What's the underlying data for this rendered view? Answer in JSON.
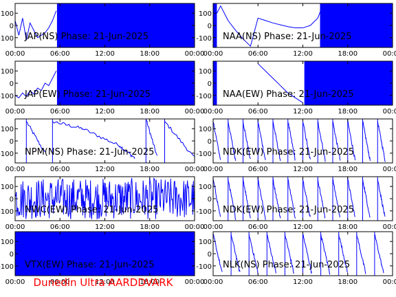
{
  "footer": "Dunedin Ultra AARDDVARK",
  "colors": {
    "trace": "#0000ff",
    "footer": "#ff0000",
    "axes": "#000000",
    "background": "#ffffff"
  },
  "chart_data": [
    {
      "type": "line",
      "title": "JAP(NS) Phase: 21-Jun-2025",
      "xlim": [
        0,
        24
      ],
      "ylim": [
        -180,
        180
      ],
      "x_tick_labels": [
        "00:00",
        "06:00",
        "12:00",
        "18:00",
        "00:00"
      ],
      "y_tick_labels": [
        "100",
        "0",
        "-100"
      ],
      "pattern": "mixed",
      "x": [
        0.0,
        0.5,
        1.0,
        1.5,
        2.0,
        2.5,
        3.0,
        3.5,
        4.0,
        4.5,
        5.0,
        5.5
      ],
      "y": [
        40,
        -80,
        60,
        -120,
        20,
        -40,
        -100,
        -80,
        -60,
        -20,
        40,
        120
      ]
    },
    {
      "type": "line",
      "title": "NAA(NS) Phase: 21-Jun-2025",
      "xlim": [
        0,
        24
      ],
      "ylim": [
        -180,
        180
      ],
      "x_tick_labels": [
        "00:00",
        "06:00",
        "12:00",
        "18:00",
        "00:00"
      ],
      "y_tick_labels": [
        "100",
        "0",
        "-100"
      ],
      "pattern": "mixed",
      "x": [
        0.5,
        1,
        1.5,
        2,
        3,
        4,
        5,
        6,
        7,
        8,
        9,
        10,
        11,
        12,
        13,
        14,
        14.5
      ],
      "y": [
        100,
        160,
        100,
        40,
        -40,
        -110,
        -170,
        60,
        40,
        20,
        5,
        -10,
        -20,
        -20,
        0,
        60,
        140
      ]
    },
    {
      "type": "line",
      "title": "JAP(EW) Phase: 21-Jun-2025",
      "xlim": [
        0,
        24
      ],
      "ylim": [
        -180,
        180
      ],
      "x_tick_labels": [
        "00:00",
        "06:00",
        "12:00",
        "18:00",
        "00:00"
      ],
      "y_tick_labels": [
        "100",
        "0",
        "-100"
      ],
      "pattern": "mixed",
      "x": [
        0,
        0.5,
        1,
        1.5,
        2,
        2.5,
        3,
        3.5,
        4,
        4.5,
        5,
        5.5
      ],
      "y": [
        -100,
        -120,
        -80,
        -110,
        -60,
        -90,
        -40,
        -60,
        0,
        -20,
        40,
        100
      ]
    },
    {
      "type": "line",
      "title": "NAA(EW) Phase: 21-Jun-2025",
      "xlim": [
        0,
        24
      ],
      "ylim": [
        -180,
        180
      ],
      "x_tick_labels": [
        "00:00",
        "06:00",
        "12:00",
        "18:00",
        "00:00"
      ],
      "y_tick_labels": [
        "100",
        "0",
        "-100"
      ],
      "pattern": "mixed",
      "x": [
        6,
        7,
        8,
        9,
        10,
        11,
        12
      ],
      "y": [
        160,
        100,
        40,
        -20,
        -80,
        -120,
        -160
      ]
    },
    {
      "type": "line",
      "title": "NPM(NS) Phase: 21-Jun-2025",
      "xlim": [
        0,
        24
      ],
      "ylim": [
        -180,
        180
      ],
      "x_tick_labels": [
        "00:00",
        "06:00",
        "12:00",
        "18:00",
        "00:00"
      ],
      "y_tick_labels": [
        "100",
        "0",
        "-100"
      ],
      "pattern": "sawtooth",
      "x": [
        0,
        1.5,
        4.0,
        5.0,
        9.0,
        14.0,
        16.0,
        17.5,
        19.0,
        20.0,
        24.0
      ],
      "y": [
        -40,
        160,
        -100,
        160,
        100,
        -40,
        -140,
        180,
        -130,
        160,
        -140
      ]
    },
    {
      "type": "line",
      "title": "NDK(EW) Phase: 21-Jun-2025",
      "xlim": [
        0,
        24
      ],
      "ylim": [
        -180,
        180
      ],
      "x_tick_labels": [
        "00:00",
        "06:00",
        "12:00",
        "18:00",
        "00:00"
      ],
      "y_tick_labels": [
        "100",
        "0",
        "-100"
      ],
      "pattern": "sawtooth",
      "x": [
        0,
        1,
        2,
        3,
        4,
        5,
        6,
        7,
        8,
        9,
        10,
        11,
        12,
        13,
        14,
        15,
        16,
        17,
        18,
        19,
        20,
        21,
        22,
        23,
        24
      ],
      "y": [
        160,
        -160,
        160,
        -160,
        160,
        -160,
        160,
        -160,
        160,
        -160,
        160,
        -160,
        160,
        -160,
        160,
        -160,
        160,
        -160,
        160,
        -160,
        160,
        -160,
        160,
        -160,
        160
      ]
    },
    {
      "type": "line",
      "title": "NWC(EW) Phase: 21-Jun-2025",
      "xlim": [
        0,
        24
      ],
      "ylim": [
        -180,
        180
      ],
      "x_tick_labels": [
        "00:00",
        "06:00",
        "12:00",
        "18:00",
        "00:00"
      ],
      "y_tick_labels": [
        "100",
        "0",
        "-100"
      ],
      "pattern": "noise",
      "x": [
        0,
        2,
        4,
        6,
        8,
        10,
        12,
        14,
        16,
        18,
        20,
        22,
        24
      ],
      "y": [
        60,
        -120,
        140,
        -60,
        120,
        -140,
        80,
        -100,
        150,
        -160,
        100,
        -40,
        90
      ]
    },
    {
      "type": "line",
      "title": "NDK(EW) Phase: 21-Jun-2025",
      "xlim": [
        0,
        24
      ],
      "ylim": [
        -180,
        180
      ],
      "x_tick_labels": [
        "00:00",
        "06:00",
        "12:00",
        "18:00",
        "00:00"
      ],
      "y_tick_labels": [
        "100",
        "0",
        "-100"
      ],
      "pattern": "sawtooth",
      "x": [
        0,
        1,
        2,
        3,
        4,
        5,
        6,
        7,
        8,
        9,
        10,
        11,
        12,
        13,
        14,
        15,
        16,
        17,
        18,
        19,
        20,
        21,
        22,
        23,
        24
      ],
      "y": [
        160,
        -160,
        160,
        -160,
        160,
        -160,
        160,
        -160,
        160,
        -160,
        160,
        -160,
        160,
        -160,
        160,
        -160,
        160,
        -160,
        160,
        -160,
        160,
        -160,
        160,
        -160,
        160
      ]
    },
    {
      "type": "line",
      "title": "VTX(EW) Phase: 21-Jun-2025",
      "xlim": [
        0,
        24
      ],
      "ylim": [
        -180,
        180
      ],
      "x_tick_labels": [
        "00:00",
        "06:00",
        "12:00",
        "18:00",
        "00:00"
      ],
      "y_tick_labels": [
        "100",
        "0",
        "-100"
      ],
      "pattern": "fill",
      "x": [
        0,
        24
      ],
      "y": [
        -180,
        180
      ]
    },
    {
      "type": "line",
      "title": "NLK(NS) Phase: 21-Jun-2025",
      "xlim": [
        0,
        24
      ],
      "ylim": [
        -180,
        180
      ],
      "x_tick_labels": [
        "00:00",
        "06:00",
        "12:00",
        "18:00",
        "00:00"
      ],
      "y_tick_labels": [
        "100",
        "0",
        "-100"
      ],
      "pattern": "sawtooth",
      "x": [
        0,
        1.2,
        2.4,
        3.6,
        4.8,
        6.0,
        7.2,
        8.4,
        9.6,
        10.8,
        12.0,
        13.2,
        14.4,
        15.6,
        16.8,
        18.0,
        19.2,
        20.4,
        21.6,
        22.8,
        24.0
      ],
      "y": [
        160,
        -160,
        160,
        -160,
        160,
        -160,
        160,
        -160,
        160,
        -160,
        160,
        -160,
        160,
        -160,
        160,
        -160,
        160,
        -160,
        160,
        -160,
        160
      ]
    }
  ]
}
